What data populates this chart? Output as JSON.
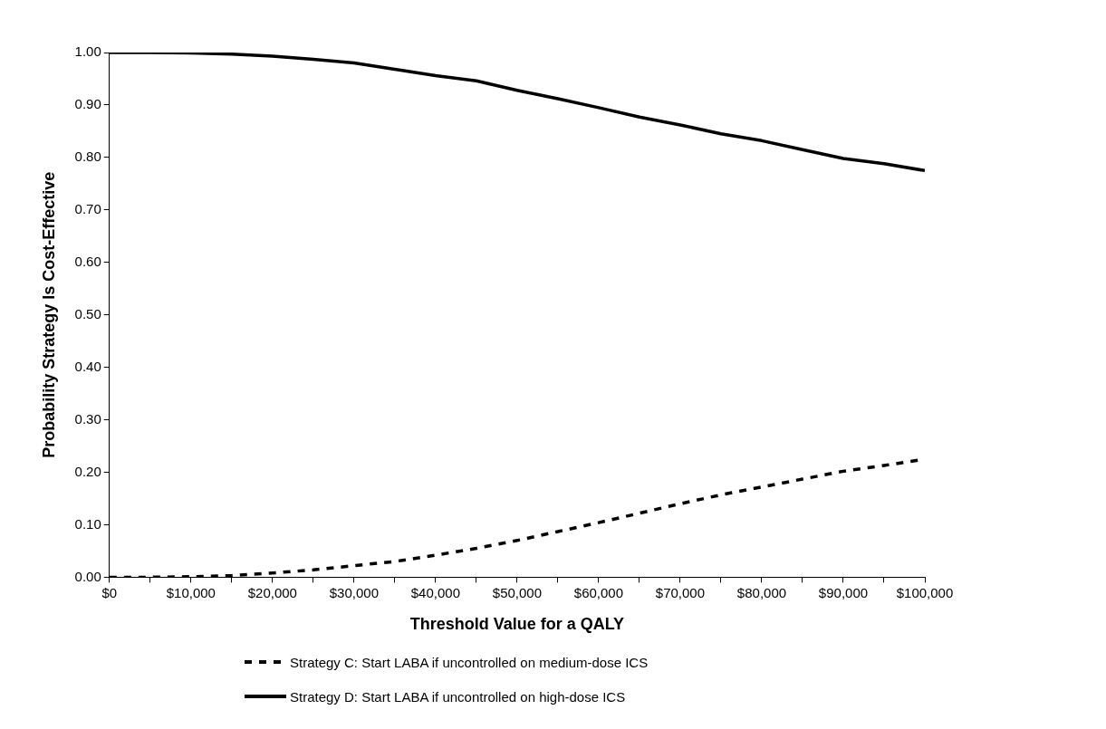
{
  "chart_data": {
    "type": "line",
    "xlabel": "Threshold Value for a QALY",
    "ylabel": "Probability Strategy Is Cost-Effective",
    "x": [
      0,
      5000,
      10000,
      15000,
      20000,
      25000,
      30000,
      35000,
      40000,
      45000,
      50000,
      55000,
      60000,
      65000,
      70000,
      75000,
      80000,
      85000,
      90000,
      95000,
      100000
    ],
    "series": [
      {
        "name": "Strategy C: Start LABA if uncontrolled on medium-dose ICS",
        "color": "#000000",
        "line_style": "dashed",
        "values": [
          0,
          0,
          0.001,
          0.003,
          0.008,
          0.014,
          0.022,
          0.03,
          0.042,
          0.055,
          0.07,
          0.087,
          0.104,
          0.122,
          0.14,
          0.157,
          0.172,
          0.187,
          0.202,
          0.213,
          0.225
        ]
      },
      {
        "name": "Strategy D: Start LABA if uncontrolled on high-dose ICS",
        "color": "#000000",
        "line_style": "solid",
        "values": [
          1,
          1,
          0.999,
          0.997,
          0.993,
          0.987,
          0.98,
          0.968,
          0.956,
          0.946,
          0.928,
          0.912,
          0.895,
          0.877,
          0.862,
          0.845,
          0.832,
          0.815,
          0.798,
          0.788,
          0.775
        ]
      }
    ],
    "xlim": [
      0,
      100000
    ],
    "xticks": [
      {
        "value": 0,
        "label": "$0"
      },
      {
        "value": 5000,
        "label": null
      },
      {
        "value": 10000,
        "label": "$10,000"
      },
      {
        "value": 15000,
        "label": null
      },
      {
        "value": 20000,
        "label": "$20,000"
      },
      {
        "value": 25000,
        "label": null
      },
      {
        "value": 30000,
        "label": "$30,000"
      },
      {
        "value": 35000,
        "label": null
      },
      {
        "value": 40000,
        "label": "$40,000"
      },
      {
        "value": 45000,
        "label": null
      },
      {
        "value": 50000,
        "label": "$50,000"
      },
      {
        "value": 55000,
        "label": null
      },
      {
        "value": 60000,
        "label": "$60,000"
      },
      {
        "value": 65000,
        "label": null
      },
      {
        "value": 70000,
        "label": "$70,000"
      },
      {
        "value": 75000,
        "label": null
      },
      {
        "value": 80000,
        "label": "$80,000"
      },
      {
        "value": 85000,
        "label": null
      },
      {
        "value": 90000,
        "label": "$90,000"
      },
      {
        "value": 95000,
        "label": null
      },
      {
        "value": 100000,
        "label": "$100,000"
      }
    ],
    "ylim": [
      0,
      1
    ],
    "yticks": [
      {
        "value": 0,
        "label": "0.00"
      },
      {
        "value": 0.1,
        "label": "0.10"
      },
      {
        "value": 0.2,
        "label": "0.20"
      },
      {
        "value": 0.3,
        "label": "0.30"
      },
      {
        "value": 0.4,
        "label": "0.40"
      },
      {
        "value": 0.5,
        "label": "0.50"
      },
      {
        "value": 0.6,
        "label": "0.60"
      },
      {
        "value": 0.7,
        "label": "0.70"
      },
      {
        "value": 0.8,
        "label": "0.80"
      },
      {
        "value": 0.9,
        "label": "0.90"
      },
      {
        "value": 1,
        "label": "1.00"
      }
    ],
    "grid": false,
    "legend": "bottom",
    "marker": "none"
  }
}
